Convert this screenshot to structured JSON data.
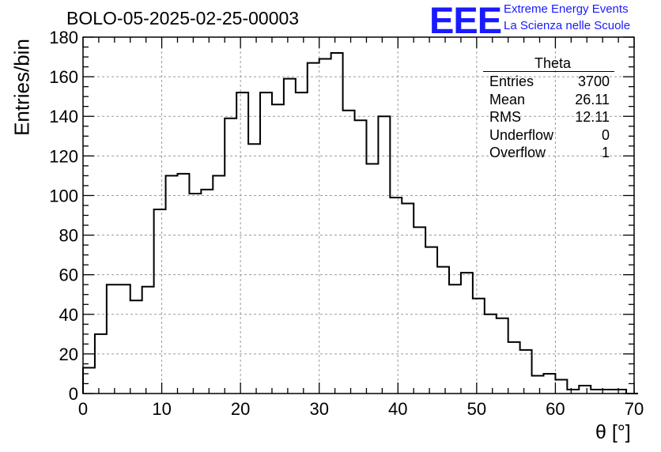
{
  "header": {
    "title": "BOLO-05-2025-02-25-00003"
  },
  "logo": {
    "mark": "EEE",
    "line1": "Extreme Energy Events",
    "line2": "La Scienza nelle Scuole",
    "color": "#1a1aff"
  },
  "stats": {
    "title": "Theta",
    "rows": [
      {
        "key": "Entries",
        "value": "3700"
      },
      {
        "key": "Mean",
        "value": "26.11"
      },
      {
        "key": "RMS",
        "value": "12.11"
      },
      {
        "key": "Underflow",
        "value": "0"
      },
      {
        "key": "Overflow",
        "value": "1"
      }
    ]
  },
  "chart_data": {
    "type": "histogram",
    "title": "BOLO-05-2025-02-25-00003",
    "xlabel": "θ [°]",
    "ylabel": "Entries/bin",
    "xlim": [
      0,
      70
    ],
    "ylim": [
      0,
      180
    ],
    "x_ticks": [
      0,
      10,
      20,
      30,
      40,
      50,
      60,
      70
    ],
    "y_ticks": [
      0,
      20,
      40,
      60,
      80,
      100,
      120,
      140,
      160,
      180
    ],
    "grid": true,
    "bin_width": 1.5,
    "bin_start": 0,
    "values": [
      13,
      30,
      55,
      55,
      47,
      54,
      93,
      110,
      111,
      101,
      103,
      110,
      139,
      152,
      126,
      152,
      146,
      159,
      152,
      167,
      169,
      172,
      143,
      138,
      116,
      140,
      99,
      96,
      84,
      74,
      64,
      55,
      61,
      48,
      40,
      38,
      26,
      22,
      9,
      10,
      7,
      2,
      4,
      2,
      2,
      2,
      0
    ],
    "line_color": "#000000"
  }
}
